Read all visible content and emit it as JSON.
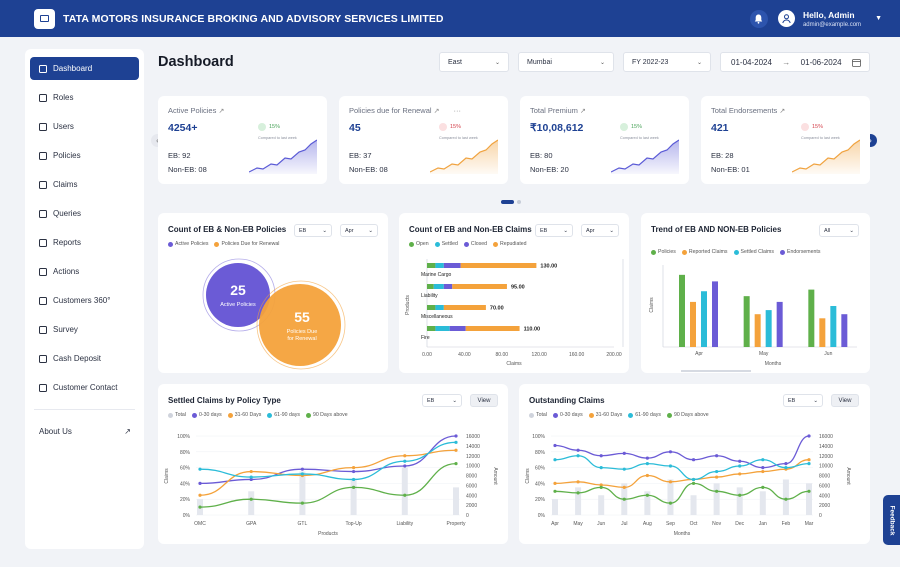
{
  "header": {
    "company": "TATA MOTORS INSURANCE BROKING AND ADVISORY SERVICES LIMITED",
    "greeting": "Hello, Admin",
    "email": "admin@example.com"
  },
  "sidebar": {
    "items": [
      {
        "label": "Dashboard"
      },
      {
        "label": "Roles"
      },
      {
        "label": "Users"
      },
      {
        "label": "Policies"
      },
      {
        "label": "Claims"
      },
      {
        "label": "Queries"
      },
      {
        "label": "Reports"
      },
      {
        "label": "Actions"
      },
      {
        "label": "Customers 360°"
      },
      {
        "label": "Survey"
      },
      {
        "label": "Cash Deposit"
      },
      {
        "label": "Customer Contact"
      }
    ],
    "about": "About Us"
  },
  "page": {
    "title": "Dashboard"
  },
  "filters": {
    "zone": "East",
    "city": "Mumbai",
    "fy": "FY 2022-23",
    "date_from": "01-04-2024",
    "date_to": "01-06-2024"
  },
  "kpis": [
    {
      "title": "Active Policies",
      "value": "4254+",
      "pct": "15%",
      "cmp": "Compared to last week",
      "eb": "EB: 92",
      "noneb": "Non-EB: 08",
      "trend": "up",
      "color": "#5b5bd6"
    },
    {
      "title": "Policies due for Renewal",
      "value": "45",
      "pct": "15%",
      "cmp": "Compared to last week",
      "eb": "EB: 37",
      "noneb": "Non-EB: 08",
      "trend": "down",
      "color": "#f0a340"
    },
    {
      "title": "Total Premium",
      "value": "₹10,08,612",
      "pct": "15%",
      "cmp": "Compared to last week",
      "eb": "EB: 80",
      "noneb": "Non-EB: 20",
      "trend": "up",
      "color": "#5b5bd6"
    },
    {
      "title": "Total Endorsements",
      "value": "421",
      "pct": "15%",
      "cmp": "Compared to last week",
      "eb": "EB: 28",
      "noneb": "Non-EB: 01",
      "trend": "down",
      "color": "#f0a340"
    }
  ],
  "venn": {
    "title": "Count of EB & Non-EB Policies",
    "sel1": "EB",
    "sel2": "Apr",
    "legend": [
      "Active Policies",
      "Policies Due for Renewal"
    ],
    "a_value": "25",
    "a_label": "Active Policies",
    "b_value": "55",
    "b_label1": "Policies Due",
    "b_label2": "for Renewal",
    "colors": [
      "#6b5bd6",
      "#f4a23b"
    ]
  },
  "claims_bar": {
    "title": "Count of EB and Non-EB Claims",
    "sel1": "EB",
    "sel2": "Apr",
    "legend": [
      "Open",
      "Settled",
      "Closed",
      "Repudiated"
    ],
    "colors": [
      "#5fb04a",
      "#2bbcd8",
      "#6b5bd6",
      "#f4a23b"
    ],
    "ylabel": "Products",
    "xlabel": "Claims",
    "xticks": [
      "0.00",
      "40.00",
      "80.00",
      "120.00",
      "160.00",
      "200.00"
    ],
    "chart_data": {
      "type": "bar",
      "orientation": "horizontal",
      "stacked": true,
      "categories": [
        "Marine Cargo",
        "Liability",
        "Miscellaneous",
        "Fire"
      ],
      "series": [
        {
          "name": "Open",
          "values": [
            10,
            8,
            10,
            10
          ]
        },
        {
          "name": "Settled",
          "values": [
            10,
            12,
            10,
            17
          ]
        },
        {
          "name": "Closed",
          "values": [
            20,
            10,
            0,
            19
          ]
        },
        {
          "name": "Repudiated",
          "values": [
            90,
            65,
            50,
            64
          ]
        }
      ],
      "totals": [
        "130.00",
        "95.00",
        "70.00",
        "110.00"
      ],
      "xlim": [
        0,
        200
      ]
    }
  },
  "trend": {
    "title": "Trend of EB AND NON-EB Policies",
    "sel": "All",
    "legend": [
      "Policies",
      "Reported Claims",
      "Settled Claims",
      "Endorsements"
    ],
    "colors": [
      "#5fb04a",
      "#f4a23b",
      "#2bbcd8",
      "#6b5bd6"
    ],
    "ylabel": "Claims",
    "xlabel": "Months",
    "chart_data": {
      "type": "bar",
      "categories": [
        "Apr",
        "May",
        "Jun"
      ],
      "series": [
        {
          "name": "Policies",
          "values": [
            88,
            62,
            70
          ]
        },
        {
          "name": "Reported Claims",
          "values": [
            55,
            40,
            35
          ]
        },
        {
          "name": "Settled Claims",
          "values": [
            68,
            45,
            50
          ]
        },
        {
          "name": "Endorsements",
          "values": [
            80,
            55,
            40
          ]
        }
      ],
      "ylim": [
        0,
        100
      ]
    }
  },
  "settled": {
    "title": "Settled Claims by Policy Type",
    "sel": "EB",
    "view": "View",
    "legend": [
      "Total",
      "0-30 days",
      "31-60 Days",
      "61-90 days",
      "90 Days above"
    ],
    "colors": [
      "#cfd3dc",
      "#6b5bd6",
      "#f4a23b",
      "#2bbcd8",
      "#5fb04a"
    ],
    "ylabel": "Claims",
    "y2label": "Amount",
    "xlabel": "Products",
    "yticks": [
      "100%",
      "80%",
      "60%",
      "40%",
      "20%",
      "0%"
    ],
    "y2ticks": [
      "16000",
      "14000",
      "12000",
      "10000",
      "8000",
      "6000",
      "4000",
      "2000",
      "0"
    ],
    "chart_data": {
      "type": "line",
      "categories": [
        "OMC",
        "GPA",
        "GTL",
        "Top-Up",
        "Liability",
        "Property"
      ],
      "series": [
        {
          "name": "Total",
          "values": [
            20,
            30,
            55,
            45,
            60,
            35
          ]
        },
        {
          "name": "0-30 days",
          "values": [
            40,
            45,
            58,
            55,
            62,
            100
          ]
        },
        {
          "name": "31-60 Days",
          "values": [
            25,
            55,
            50,
            60,
            75,
            82
          ]
        },
        {
          "name": "61-90 days",
          "values": [
            58,
            48,
            52,
            45,
            68,
            92
          ]
        },
        {
          "name": "90 Days above",
          "values": [
            10,
            20,
            15,
            35,
            25,
            65
          ]
        }
      ],
      "ylim": [
        0,
        100
      ]
    }
  },
  "outstanding": {
    "title": "Outstanding Claims",
    "sel": "EB",
    "view": "View",
    "legend": [
      "Total",
      "0-30 days",
      "31-60 Days",
      "61-90 days",
      "90 Days above"
    ],
    "colors": [
      "#cfd3dc",
      "#6b5bd6",
      "#f4a23b",
      "#2bbcd8",
      "#5fb04a"
    ],
    "ylabel": "Claims",
    "y2label": "Amount",
    "xlabel": "Months",
    "yticks": [
      "100%",
      "80%",
      "60%",
      "40%",
      "20%",
      "0%"
    ],
    "y2ticks": [
      "16000",
      "14000",
      "12000",
      "10000",
      "8000",
      "6000",
      "4000",
      "2000",
      "0"
    ],
    "chart_data": {
      "type": "line",
      "categories": [
        "Apr",
        "May",
        "Jun",
        "Jul",
        "Aug",
        "Sep",
        "Oct",
        "Nov",
        "Dec",
        "Jan",
        "Feb",
        "Mar"
      ],
      "series": [
        {
          "name": "Total",
          "values": [
            20,
            35,
            25,
            40,
            30,
            45,
            25,
            40,
            35,
            30,
            45,
            40
          ]
        },
        {
          "name": "0-30 days",
          "values": [
            88,
            82,
            75,
            78,
            72,
            80,
            70,
            75,
            68,
            60,
            65,
            100
          ]
        },
        {
          "name": "31-60 Days",
          "values": [
            40,
            42,
            38,
            35,
            50,
            42,
            45,
            48,
            52,
            55,
            58,
            70
          ]
        },
        {
          "name": "61-90 days",
          "values": [
            70,
            75,
            60,
            58,
            65,
            62,
            45,
            55,
            62,
            70,
            60,
            65
          ]
        },
        {
          "name": "90 Days above",
          "values": [
            30,
            28,
            35,
            20,
            25,
            15,
            40,
            30,
            25,
            35,
            20,
            30
          ]
        }
      ],
      "ylim": [
        0,
        100
      ]
    }
  },
  "feedback": "Feedback"
}
